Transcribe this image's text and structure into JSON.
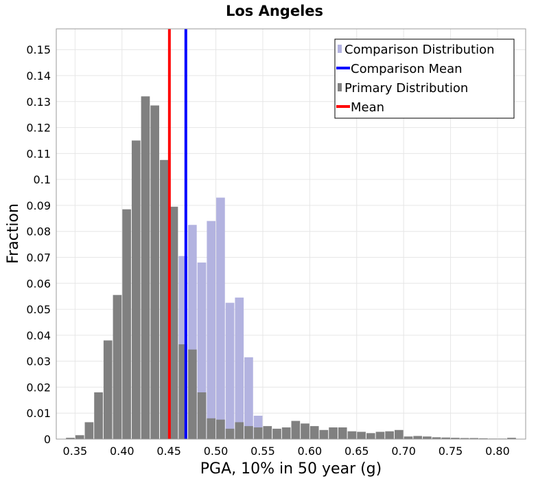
{
  "chart_data": {
    "type": "bar",
    "title": "Los Angeles",
    "xlabel": "PGA, 10% in 50 year (g)",
    "ylabel": "Fraction",
    "xlim": [
      0.33,
      0.83
    ],
    "ylim": [
      0,
      0.158
    ],
    "xticks": [
      "0.35",
      "0.40",
      "0.45",
      "0.50",
      "0.55",
      "0.60",
      "0.65",
      "0.70",
      "0.75",
      "0.80"
    ],
    "yticks": [
      "0",
      "0.01",
      "0.02",
      "0.03",
      "0.04",
      "0.05",
      "0.06",
      "0.07",
      "0.08",
      "0.09",
      "0.1",
      "0.11",
      "0.12",
      "0.13",
      "0.14",
      "0.15"
    ],
    "bin_width": 0.01,
    "grid": true,
    "legend_position": "top-right",
    "series": [
      {
        "name": "Comparison Distribution",
        "kind": "histogram",
        "color": "#b3b3e0",
        "bin_centers": [
          0.465,
          0.475,
          0.485,
          0.495,
          0.505,
          0.515,
          0.525,
          0.535,
          0.545
        ],
        "values": [
          0.0705,
          0.0825,
          0.068,
          0.084,
          0.093,
          0.0525,
          0.0545,
          0.0315,
          0.009
        ]
      },
      {
        "name": "Comparison Mean",
        "kind": "vline",
        "color": "#0000ff",
        "x": 0.468
      },
      {
        "name": "Primary Distribution",
        "kind": "histogram",
        "color": "#808080",
        "bin_centers": [
          0.345,
          0.355,
          0.365,
          0.375,
          0.385,
          0.395,
          0.405,
          0.415,
          0.425,
          0.435,
          0.445,
          0.455,
          0.465,
          0.475,
          0.485,
          0.495,
          0.505,
          0.515,
          0.525,
          0.535,
          0.545,
          0.555,
          0.565,
          0.575,
          0.585,
          0.595,
          0.605,
          0.615,
          0.625,
          0.635,
          0.645,
          0.655,
          0.665,
          0.675,
          0.685,
          0.695,
          0.705,
          0.715,
          0.725,
          0.735,
          0.745,
          0.755,
          0.765,
          0.775,
          0.785,
          0.795,
          0.805,
          0.815
        ],
        "values": [
          0.0005,
          0.0015,
          0.0065,
          0.018,
          0.038,
          0.0555,
          0.0885,
          0.115,
          0.132,
          0.1285,
          0.1075,
          0.0895,
          0.0365,
          0.0345,
          0.018,
          0.008,
          0.0075,
          0.004,
          0.0065,
          0.005,
          0.0045,
          0.005,
          0.004,
          0.0045,
          0.007,
          0.006,
          0.005,
          0.0035,
          0.0045,
          0.0045,
          0.003,
          0.0028,
          0.0023,
          0.0028,
          0.003,
          0.0035,
          0.001,
          0.0012,
          0.001,
          0.0007,
          0.0006,
          0.0005,
          0.0004,
          0.0004,
          0.0003,
          0.0002,
          0.0002,
          0.0005
        ]
      },
      {
        "name": "Mean",
        "kind": "vline",
        "color": "#ff0000",
        "x": 0.4505
      }
    ]
  }
}
